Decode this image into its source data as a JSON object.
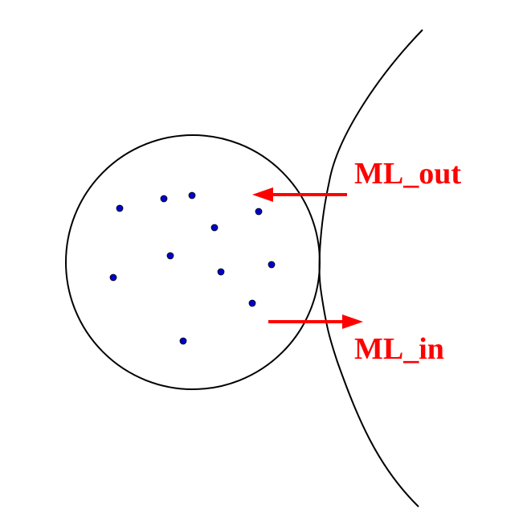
{
  "labels": {
    "out": "ML_out",
    "in": "ML_in"
  },
  "points_count_shown": 11,
  "colors": {
    "stroke": "#000000",
    "point_fill": "#0000cc",
    "arrow": "#ff0000",
    "label": "#ff0000",
    "background": "#ffffff"
  }
}
